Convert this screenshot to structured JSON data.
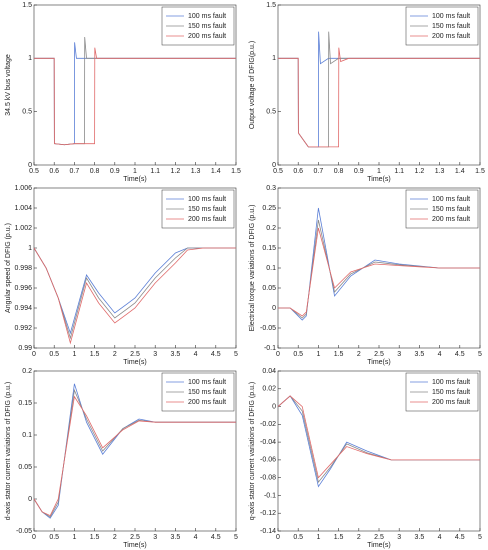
{
  "chart_data": [
    {
      "type": "line",
      "y_label": "34.5 kV bus voltage",
      "x_label": "Time(s)",
      "x": [
        0.5,
        0.6,
        0.601,
        0.65,
        0.7,
        0.701,
        0.71,
        0.75,
        0.751,
        0.76,
        0.8,
        0.801,
        0.81,
        0.85,
        1.5
      ],
      "xlim": [
        0.5,
        1.5
      ],
      "xticks": [
        0.5,
        0.6,
        0.7,
        0.8,
        0.9,
        1,
        1.1,
        1.2,
        1.3,
        1.4,
        1.5
      ],
      "ylim": [
        0,
        1.5
      ],
      "yticks": [
        0,
        0.5,
        1,
        1.5
      ],
      "legend": "upper right",
      "series": [
        {
          "name": "100 ms fault",
          "color": "#5b7fd6",
          "values": [
            1,
            1,
            0.2,
            0.19,
            0.2,
            1.15,
            1.0,
            1,
            1,
            1,
            1,
            1,
            1,
            1,
            1
          ]
        },
        {
          "name": "150 ms fault",
          "color": "#8a8a8a",
          "values": [
            1,
            1,
            0.2,
            0.19,
            0.2,
            0.2,
            0.2,
            0.2,
            1.2,
            1.0,
            1,
            1,
            1,
            1,
            1
          ]
        },
        {
          "name": "200 ms fault",
          "color": "#e06a6a",
          "values": [
            1,
            1,
            0.2,
            0.19,
            0.2,
            0.2,
            0.2,
            0.2,
            0.2,
            0.2,
            0.2,
            1.1,
            1.0,
            1,
            1
          ]
        }
      ]
    },
    {
      "type": "line",
      "y_label": "Output voltage of DFIG(p.u.)",
      "x_label": "Time(s)",
      "x": [
        0.5,
        0.6,
        0.601,
        0.65,
        0.7,
        0.701,
        0.71,
        0.75,
        0.751,
        0.76,
        0.8,
        0.801,
        0.81,
        0.85,
        1.5
      ],
      "xlim": [
        0.5,
        1.5
      ],
      "xticks": [
        0.5,
        0.6,
        0.7,
        0.8,
        0.9,
        1,
        1.1,
        1.2,
        1.3,
        1.4,
        1.5
      ],
      "ylim": [
        0,
        1.5
      ],
      "yticks": [
        0,
        0.5,
        1,
        1.5
      ],
      "legend": "upper right",
      "series": [
        {
          "name": "100 ms fault",
          "color": "#5b7fd6",
          "values": [
            1,
            1,
            0.3,
            0.17,
            0.17,
            1.25,
            0.95,
            1,
            1,
            1,
            1,
            1,
            1,
            1,
            1
          ]
        },
        {
          "name": "150 ms fault",
          "color": "#8a8a8a",
          "values": [
            1,
            1,
            0.3,
            0.17,
            0.17,
            0.17,
            0.17,
            0.17,
            1.25,
            0.95,
            1,
            1,
            1,
            1,
            1
          ]
        },
        {
          "name": "200 ms fault",
          "color": "#e06a6a",
          "values": [
            1,
            1,
            0.3,
            0.17,
            0.17,
            0.17,
            0.17,
            0.17,
            0.17,
            0.17,
            0.17,
            1.1,
            0.97,
            1,
            1
          ]
        }
      ]
    },
    {
      "type": "line",
      "y_label": "Angular speed of DFIG  (p.u.)",
      "x_label": "Time(s)",
      "x": [
        0,
        0.3,
        0.6,
        0.9,
        1.3,
        1.6,
        2.0,
        2.5,
        3.0,
        3.5,
        3.8,
        4.2,
        5
      ],
      "xlim": [
        0,
        5
      ],
      "xticks": [
        0,
        0.5,
        1,
        1.5,
        2,
        2.5,
        3,
        3.5,
        4,
        4.5,
        5
      ],
      "ylim": [
        0.99,
        1.006
      ],
      "yticks": [
        0.99,
        0.992,
        0.994,
        0.996,
        0.998,
        1,
        1.002,
        1.004,
        1.006
      ],
      "legend": "upper right",
      "series": [
        {
          "name": "100 ms fault",
          "color": "#5b7fd6",
          "values": [
            1,
            0.998,
            0.995,
            0.9915,
            0.9973,
            0.9955,
            0.9935,
            0.995,
            0.9975,
            0.9995,
            1,
            1,
            1
          ]
        },
        {
          "name": "150 ms fault",
          "color": "#8a8a8a",
          "values": [
            1,
            0.998,
            0.995,
            0.991,
            0.997,
            0.995,
            0.993,
            0.9945,
            0.997,
            0.999,
            1,
            1,
            1
          ]
        },
        {
          "name": "200 ms fault",
          "color": "#e06a6a",
          "values": [
            1,
            0.998,
            0.995,
            0.9905,
            0.9965,
            0.9945,
            0.9925,
            0.994,
            0.9965,
            0.9985,
            0.9998,
            1,
            1
          ]
        }
      ]
    },
    {
      "type": "line",
      "y_label": "Electrical torque variations of DFIG (p.u.)",
      "x_label": "Time(s)",
      "x": [
        0,
        0.3,
        0.6,
        0.7,
        1.0,
        1.4,
        1.8,
        2.4,
        3.0,
        3.5,
        4,
        5
      ],
      "xlim": [
        0,
        5
      ],
      "xticks": [
        0,
        0.5,
        1,
        1.5,
        2,
        2.5,
        3,
        3.5,
        4,
        4.5,
        5
      ],
      "ylim": [
        -0.1,
        0.3
      ],
      "yticks": [
        -0.1,
        -0.05,
        0,
        0.05,
        0.1,
        0.15,
        0.2,
        0.25,
        0.3
      ],
      "legend": "upper right",
      "series": [
        {
          "name": "100 ms fault",
          "color": "#5b7fd6",
          "values": [
            0,
            0,
            -0.03,
            -0.02,
            0.25,
            0.03,
            0.08,
            0.12,
            0.11,
            0.105,
            0.1,
            0.1
          ]
        },
        {
          "name": "150 ms fault",
          "color": "#8a8a8a",
          "values": [
            0,
            0,
            -0.025,
            -0.015,
            0.22,
            0.04,
            0.085,
            0.115,
            0.108,
            0.104,
            0.1,
            0.1
          ]
        },
        {
          "name": "200 ms fault",
          "color": "#e06a6a",
          "values": [
            0,
            0,
            -0.02,
            -0.01,
            0.2,
            0.05,
            0.09,
            0.11,
            0.106,
            0.103,
            0.1,
            0.1
          ]
        }
      ]
    },
    {
      "type": "line",
      "y_label": "d-axis stator current variations of DFIG (p.u.)",
      "x_label": "Time(s)",
      "x": [
        0,
        0.2,
        0.4,
        0.6,
        1.0,
        1.3,
        1.7,
        2.2,
        2.6,
        3,
        4,
        5
      ],
      "xlim": [
        0,
        5
      ],
      "xticks": [
        0,
        0.5,
        1,
        1.5,
        2,
        2.5,
        3,
        3.5,
        4,
        4.5,
        5
      ],
      "ylim": [
        -0.05,
        0.2
      ],
      "yticks": [
        -0.05,
        0,
        0.05,
        0.1,
        0.15,
        0.2
      ],
      "legend": "upper right",
      "series": [
        {
          "name": "100 ms fault",
          "color": "#5b7fd6",
          "values": [
            0,
            -0.02,
            -0.03,
            -0.01,
            0.18,
            0.12,
            0.07,
            0.11,
            0.125,
            0.12,
            0.12,
            0.12
          ]
        },
        {
          "name": "150 ms fault",
          "color": "#8a8a8a",
          "values": [
            0,
            -0.02,
            -0.028,
            -0.005,
            0.17,
            0.125,
            0.075,
            0.11,
            0.123,
            0.12,
            0.12,
            0.12
          ]
        },
        {
          "name": "200 ms fault",
          "color": "#e06a6a",
          "values": [
            0,
            -0.02,
            -0.026,
            0,
            0.16,
            0.13,
            0.08,
            0.108,
            0.122,
            0.12,
            0.12,
            0.12
          ]
        }
      ]
    },
    {
      "type": "line",
      "y_label": "q-axis stator current variations of DFIG (p.u.)",
      "x_label": "Time(s)",
      "x": [
        0,
        0.3,
        0.6,
        1.0,
        1.3,
        1.7,
        2.2,
        2.8,
        3.5,
        5
      ],
      "xlim": [
        0,
        5
      ],
      "xticks": [
        0,
        0.5,
        1,
        1.5,
        2,
        2.5,
        3,
        3.5,
        4,
        4.5,
        5
      ],
      "ylim": [
        -0.14,
        0.04
      ],
      "yticks": [
        -0.14,
        -0.12,
        -0.1,
        -0.08,
        -0.06,
        -0.04,
        -0.02,
        0,
        0.02,
        0.04
      ],
      "legend": "upper right",
      "series": [
        {
          "name": "100 ms fault",
          "color": "#5b7fd6",
          "values": [
            0,
            0.012,
            -0.01,
            -0.09,
            -0.07,
            -0.04,
            -0.05,
            -0.06,
            -0.06,
            -0.06
          ]
        },
        {
          "name": "150 ms fault",
          "color": "#8a8a8a",
          "values": [
            0,
            0.012,
            -0.005,
            -0.085,
            -0.068,
            -0.042,
            -0.052,
            -0.06,
            -0.06,
            -0.06
          ]
        },
        {
          "name": "200 ms fault",
          "color": "#e06a6a",
          "values": [
            0,
            0.012,
            0,
            -0.08,
            -0.065,
            -0.045,
            -0.053,
            -0.06,
            -0.06,
            -0.06
          ]
        }
      ]
    }
  ]
}
